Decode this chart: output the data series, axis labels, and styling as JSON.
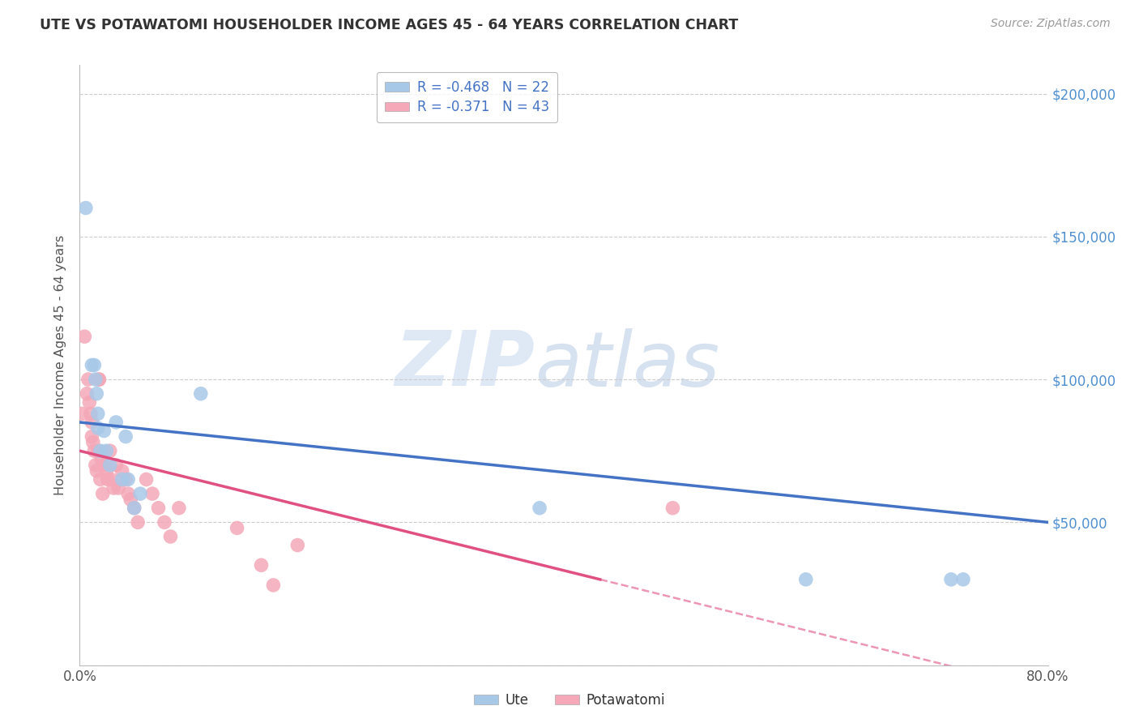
{
  "title": "UTE VS POTAWATOMI HOUSEHOLDER INCOME AGES 45 - 64 YEARS CORRELATION CHART",
  "source": "Source: ZipAtlas.com",
  "ylabel": "Householder Income Ages 45 - 64 years",
  "ute_R": -0.468,
  "ute_N": 22,
  "potawatomi_R": -0.371,
  "potawatomi_N": 43,
  "ute_color": "#a8c8e8",
  "potawatomi_color": "#f4a8b8",
  "ute_line_color": "#4472c4",
  "potawatomi_line_color": "#e05080",
  "ute_x": [
    0.005,
    0.01,
    0.012,
    0.013,
    0.014,
    0.015,
    0.015,
    0.017,
    0.02,
    0.022,
    0.025,
    0.03,
    0.035,
    0.038,
    0.04,
    0.045,
    0.05,
    0.1,
    0.38,
    0.6,
    0.72,
    0.73
  ],
  "ute_y": [
    160000,
    105000,
    105000,
    100000,
    95000,
    88000,
    83000,
    75000,
    82000,
    75000,
    70000,
    85000,
    65000,
    80000,
    65000,
    55000,
    60000,
    95000,
    55000,
    30000,
    30000,
    30000
  ],
  "potawatomi_x": [
    0.002,
    0.004,
    0.006,
    0.007,
    0.008,
    0.009,
    0.01,
    0.01,
    0.011,
    0.012,
    0.013,
    0.014,
    0.015,
    0.016,
    0.016,
    0.017,
    0.018,
    0.019,
    0.02,
    0.022,
    0.023,
    0.025,
    0.026,
    0.028,
    0.03,
    0.032,
    0.035,
    0.038,
    0.04,
    0.042,
    0.045,
    0.048,
    0.055,
    0.06,
    0.065,
    0.07,
    0.075,
    0.082,
    0.13,
    0.18,
    0.49,
    0.15,
    0.16
  ],
  "potawatomi_y": [
    88000,
    115000,
    95000,
    100000,
    92000,
    88000,
    85000,
    80000,
    78000,
    75000,
    70000,
    68000,
    75000,
    100000,
    100000,
    65000,
    72000,
    60000,
    70000,
    68000,
    65000,
    75000,
    65000,
    62000,
    70000,
    62000,
    68000,
    65000,
    60000,
    58000,
    55000,
    50000,
    65000,
    60000,
    55000,
    50000,
    45000,
    55000,
    48000,
    42000,
    55000,
    35000,
    28000
  ],
  "xlim": [
    0.0,
    0.8
  ],
  "ylim": [
    0,
    210000
  ],
  "yticks": [
    0,
    50000,
    100000,
    150000,
    200000
  ],
  "ytick_labels_right": [
    "",
    "$50,000",
    "$100,000",
    "$150,000",
    "$200,000"
  ],
  "xticks": [
    0.0,
    0.1,
    0.2,
    0.3,
    0.4,
    0.5,
    0.6,
    0.7,
    0.8
  ],
  "watermark_zip": "ZIP",
  "watermark_atlas": "atlas",
  "background_color": "#ffffff",
  "grid_color": "#cccccc",
  "right_label_color": "#5090d0",
  "title_color": "#333333",
  "axis_label_color": "#555555",
  "tick_label_color": "#555555"
}
